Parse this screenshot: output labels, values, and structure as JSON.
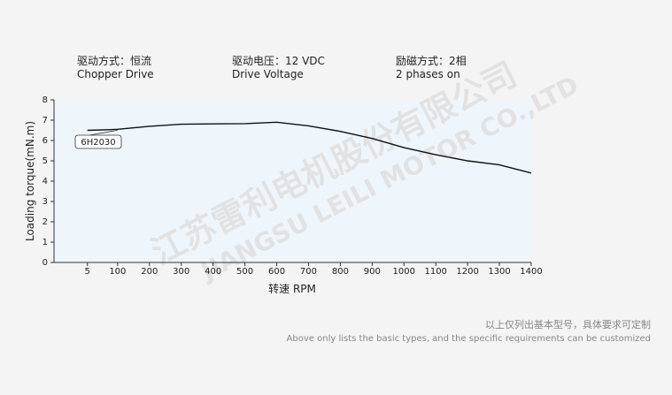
{
  "header": {
    "specs": [
      {
        "label": "驱动方式：恒流",
        "sub": "Chopper Drive"
      },
      {
        "label": "驱动电压：12 VDC",
        "sub": "Drive Voltage"
      },
      {
        "label": "励磁方式：2相",
        "sub": "2 phases on"
      }
    ]
  },
  "chart_data": {
    "type": "line",
    "xlabel": "转速 RPM",
    "ylabel": "Loading torque(mN.m)",
    "x": [
      5,
      100,
      200,
      300,
      400,
      500,
      600,
      700,
      800,
      900,
      1000,
      1100,
      1200,
      1300,
      1400
    ],
    "series": [
      {
        "name": "6H2030",
        "color": "#111111",
        "values": [
          6.5,
          6.55,
          6.7,
          6.8,
          6.82,
          6.83,
          6.9,
          6.72,
          6.45,
          6.1,
          5.65,
          5.3,
          5.0,
          4.8,
          4.4
        ]
      }
    ],
    "xlim": [
      -100,
      1400
    ],
    "xticks": [
      5,
      100,
      200,
      300,
      400,
      500,
      600,
      700,
      800,
      900,
      1000,
      1100,
      1200,
      1300,
      1400
    ],
    "ylim": [
      0,
      8
    ],
    "yticks": [
      0,
      1,
      2,
      3,
      4,
      5,
      6,
      7,
      8
    ]
  },
  "footer": {
    "note_cn": "以上仅列出基本型号，具体要求可定制",
    "note_en": "Above only lists the basic types, and the specific requirements can be customized"
  },
  "watermark": {
    "company_cn": "江苏雷利电机股份有限公司",
    "company_en": "JIANGSU LEILI MOTOR CO.,LTD"
  }
}
